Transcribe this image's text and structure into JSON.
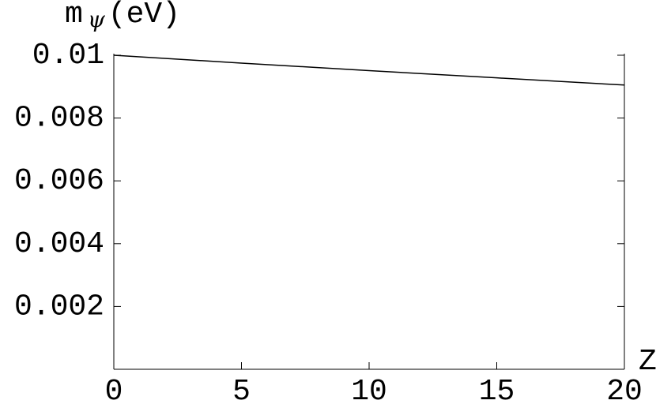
{
  "chart_data": {
    "type": "line",
    "x_label": "Z",
    "y_label": {
      "symbol": "m",
      "subscript": "ψ",
      "unit": "(eV)"
    },
    "x": [
      0,
      5,
      10,
      15,
      20
    ],
    "series": [
      {
        "color": "#000000",
        "values": [
          0.01,
          0.00975,
          0.00951,
          0.00928,
          0.00905
        ]
      }
    ],
    "xlim": [
      0,
      20
    ],
    "xticks": [
      0,
      5,
      10,
      15,
      20
    ],
    "ylim": [
      0,
      0.01
    ],
    "yticks": [
      0.002,
      0.004,
      0.006,
      0.008,
      0.01
    ]
  }
}
